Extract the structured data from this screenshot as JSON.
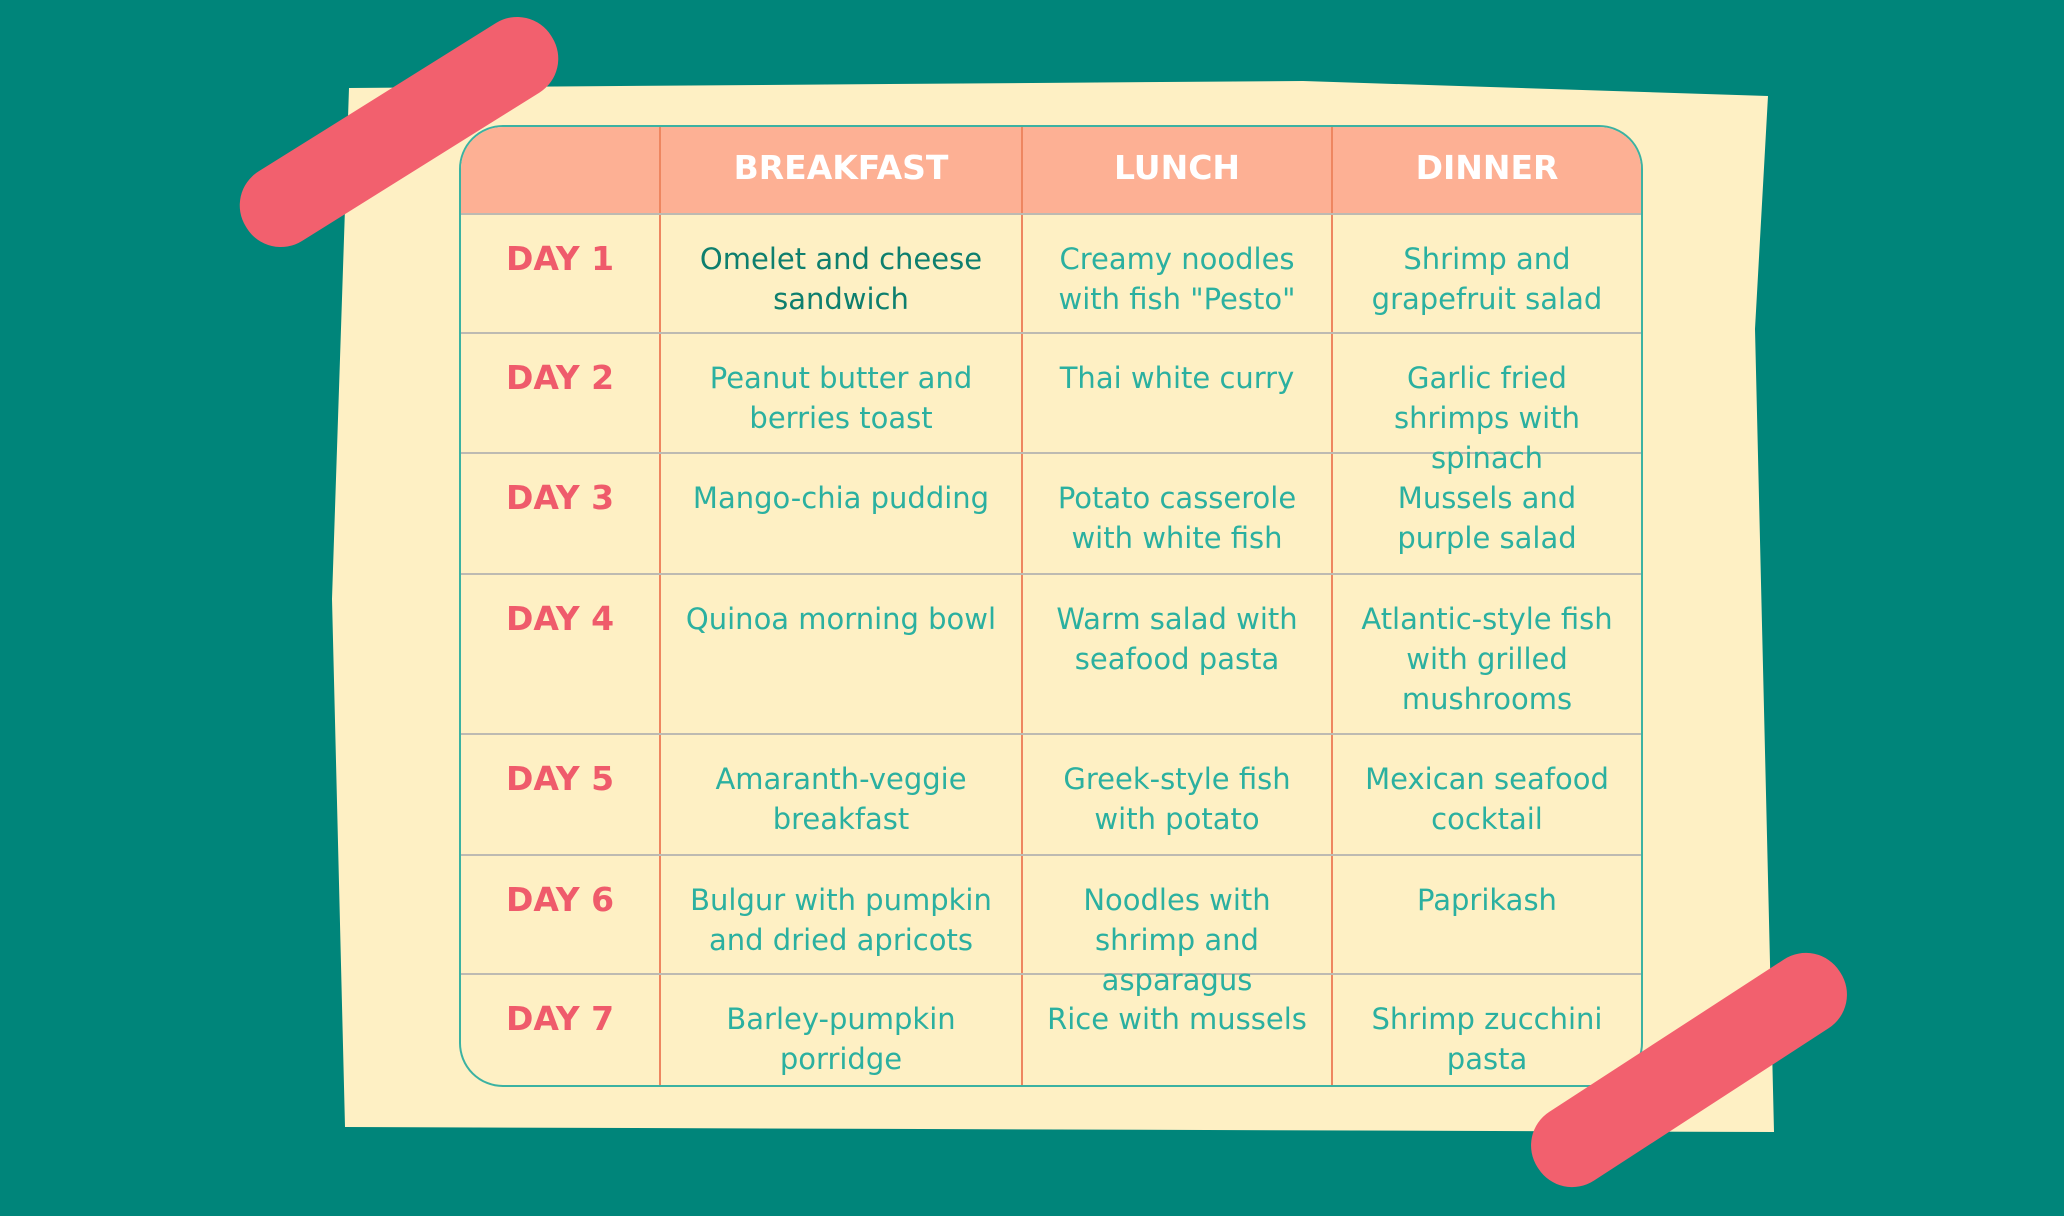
{
  "colors": {
    "background": "#00857a",
    "paper": "#fef0c4",
    "tape": "#f2606e",
    "header": "#fdb094",
    "day_label": "#ef5b6b",
    "meal_text": "#2bb0a0"
  },
  "headers": [
    "",
    "BREAKFAST",
    "LUNCH",
    "DINNER"
  ],
  "rows": [
    {
      "day": "DAY 1",
      "breakfast": "Omelet and cheese sandwich",
      "lunch": "Creamy noodles with fish \"Pesto\"",
      "dinner": "Shrimp and grapefruit salad"
    },
    {
      "day": "DAY 2",
      "breakfast": "Peanut butter and berries toast",
      "lunch": "Thai white curry",
      "dinner": "Garlic fried shrimps with spinach"
    },
    {
      "day": "DAY 3",
      "breakfast": "Mango-chia pudding",
      "lunch": "Potato casserole with white fish",
      "dinner": "Mussels and purple salad"
    },
    {
      "day": "DAY 4",
      "breakfast": "Quinoa morning bowl",
      "lunch": "Warm salad with seafood pasta",
      "dinner": "Atlantic-style fish with grilled mushrooms"
    },
    {
      "day": "DAY 5",
      "breakfast": "Amaranth-veggie breakfast",
      "lunch": "Greek-style fish with potato",
      "dinner": "Mexican seafood cocktail"
    },
    {
      "day": "DAY 6",
      "breakfast": "Bulgur with pumpkin and dried apricots",
      "lunch": "Noodles with shrimp and asparagus",
      "dinner": "Paprikash"
    },
    {
      "day": "DAY 7",
      "breakfast": "Barley-pumpkin porridge",
      "lunch": "Rice with mussels",
      "dinner": "Shrimp zucchini pasta"
    }
  ]
}
